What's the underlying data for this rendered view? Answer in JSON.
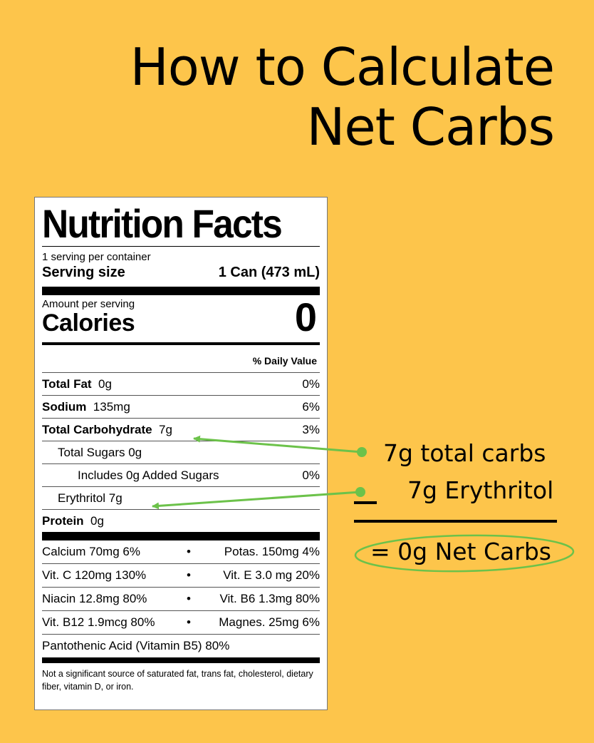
{
  "title": {
    "line1": "How to Calculate",
    "line2": "Net Carbs"
  },
  "label": {
    "heading": "Nutrition Facts",
    "servings": "1 serving per container",
    "serving_size_label": "Serving size",
    "serving_size_value": "1 Can (473 mL)",
    "amount_per_serving": "Amount per serving",
    "calories_label": "Calories",
    "calories_value": "0",
    "daily_value_header": "% Daily Value",
    "rows": {
      "total_fat": {
        "name": "Total Fat",
        "amount": "0g",
        "dv": "0%"
      },
      "sodium": {
        "name": "Sodium",
        "amount": "135mg",
        "dv": "6%"
      },
      "total_carb": {
        "name": "Total Carbohydrate",
        "amount": "7g",
        "dv": "3%"
      },
      "total_sugars": {
        "text": "Total Sugars 0g"
      },
      "added_sugars": {
        "text": "Includes 0g Added Sugars",
        "dv": "0%"
      },
      "erythritol": {
        "text": "Erythritol 7g"
      },
      "protein": {
        "name": "Protein",
        "amount": "0g"
      }
    },
    "minerals": [
      {
        "left": "Calcium  70mg  6%",
        "right": "Potas.  150mg  4%"
      },
      {
        "left": "Vit. C  120mg  130%",
        "right": "Vit. E  3.0 mg 20%"
      },
      {
        "left": "Niacin  12.8mg  80%",
        "right": "Vit. B6  1.3mg  80%"
      },
      {
        "left": "Vit. B12  1.9mcg  80%",
        "right": "Magnes.  25mg  6%"
      }
    ],
    "bullet": "•",
    "pantothenic": "Pantothenic Acid (Vitamin B5)  80%",
    "footnote": "Not a significant source of saturated fat, trans fat, cholesterol, dietary fiber, vitamin D, or iron."
  },
  "annotations": {
    "total_carbs": "7g total carbs",
    "erythritol": "7g Erythritol",
    "net_carbs": "= 0g Net Carbs"
  },
  "colors": {
    "background": "#FDC54B",
    "accent_green": "#6CC24A",
    "text": "#000000",
    "label_bg": "#FFFFFF"
  }
}
